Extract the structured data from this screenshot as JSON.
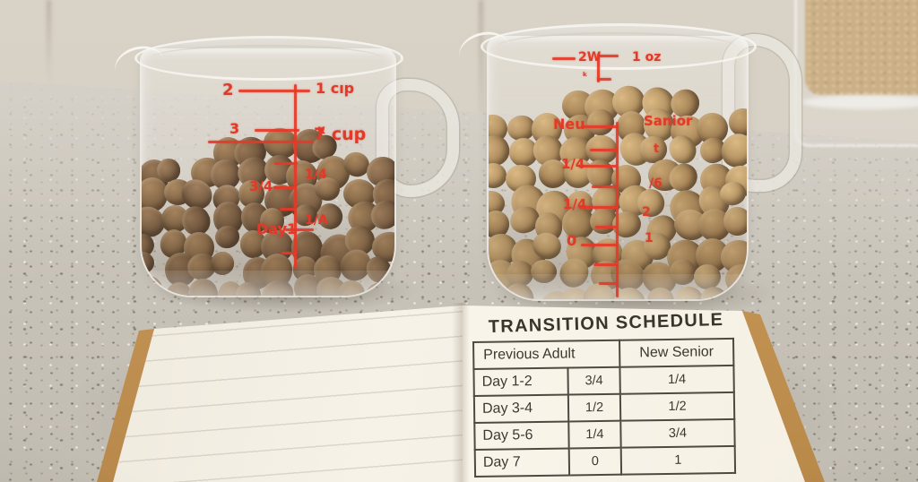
{
  "measuring_cups": {
    "left": {
      "markings": {
        "two": "2",
        "one_cip": "1 cıp",
        "three": "3",
        "k_glyph": "ĸ",
        "seven_cup": "7 cup",
        "one_quarter_upper": "1/4",
        "three_quarters": "3/4",
        "one_quarter_lower": "1/A",
        "day1": "Day1"
      }
    },
    "right": {
      "markings": {
        "two_w": "2W",
        "k_glyph": "ₖ",
        "one_oz": "1 oz",
        "new_label": "Neu",
        "senior_label": "Sanior",
        "t_glyph": "t",
        "one_quarter_upper": "1/4",
        "six_glyph": "/6",
        "one_quarter_lower": "1/4",
        "two": "2",
        "zero": "0",
        "one": "1"
      }
    }
  },
  "notebook": {
    "title": "TRANSITION SCHEDULE",
    "table": {
      "headers": [
        "Previous Adult",
        "New Senior"
      ],
      "rows": [
        {
          "day": "Day 1-2",
          "previous": "3/4",
          "new": "1/4"
        },
        {
          "day": "Day 3-4",
          "previous": "1/2",
          "new": "1/2"
        },
        {
          "day": "Day 5-6",
          "previous": "1/4",
          "new": "3/4"
        },
        {
          "day": "Day 7",
          "previous": "0",
          "new": "1"
        }
      ]
    }
  },
  "colors": {
    "marking_red": "#e23a28",
    "table_ink": "#3b382f",
    "kraft_edge": "#c59a5a",
    "counter": "#c9c4ba",
    "wall": "#d8d2c6"
  }
}
